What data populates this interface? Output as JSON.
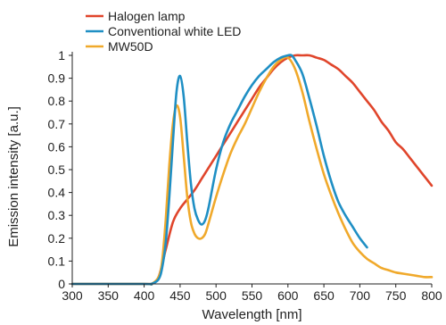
{
  "chart_data": {
    "type": "line",
    "xlabel": "Wavelength [nm]",
    "ylabel": "Emission intensity [a.u.]",
    "xlim": [
      300,
      800
    ],
    "ylim": [
      0,
      1
    ],
    "xticks": [
      300,
      350,
      400,
      450,
      500,
      550,
      600,
      650,
      700,
      750,
      800
    ],
    "yticks": [
      0,
      0.1,
      0.2,
      0.3,
      0.4,
      0.5,
      0.6,
      0.7,
      0.8,
      0.9,
      1
    ],
    "ytick_labels": [
      "0",
      "0.1",
      "0.2",
      "0.3",
      "0.4",
      "0.5",
      "0.6",
      "0.7",
      "0.8",
      "0.9",
      "1"
    ],
    "grid": false,
    "legend_position": "top-left",
    "series": [
      {
        "name": "Halogen lamp",
        "color": "#e0452b",
        "x": [
          300,
          400,
          410,
          420,
          430,
          440,
          450,
          460,
          470,
          480,
          490,
          500,
          510,
          520,
          530,
          540,
          550,
          560,
          570,
          580,
          590,
          600,
          610,
          620,
          630,
          640,
          650,
          660,
          670,
          680,
          690,
          700,
          710,
          720,
          730,
          740,
          750,
          760,
          770,
          780,
          790,
          800
        ],
        "y": [
          0,
          0,
          0.0,
          0.03,
          0.15,
          0.27,
          0.33,
          0.37,
          0.41,
          0.46,
          0.51,
          0.56,
          0.61,
          0.66,
          0.71,
          0.76,
          0.81,
          0.86,
          0.9,
          0.94,
          0.97,
          0.99,
          1.0,
          1.0,
          1.0,
          0.99,
          0.98,
          0.96,
          0.94,
          0.91,
          0.88,
          0.84,
          0.8,
          0.76,
          0.71,
          0.67,
          0.62,
          0.59,
          0.55,
          0.51,
          0.47,
          0.43
        ]
      },
      {
        "name": "Conventional white LED",
        "color": "#1f8fc4",
        "x": [
          300,
          400,
          410,
          420,
          425,
          430,
          435,
          440,
          445,
          450,
          455,
          460,
          465,
          470,
          475,
          480,
          485,
          490,
          500,
          510,
          520,
          530,
          540,
          550,
          560,
          570,
          580,
          590,
          600,
          605,
          610,
          620,
          630,
          640,
          650,
          660,
          670,
          680,
          690,
          700,
          710
        ],
        "y": [
          0,
          0,
          0.0,
          0.02,
          0.07,
          0.18,
          0.38,
          0.62,
          0.84,
          0.91,
          0.82,
          0.62,
          0.44,
          0.33,
          0.28,
          0.26,
          0.28,
          0.34,
          0.5,
          0.62,
          0.7,
          0.76,
          0.82,
          0.87,
          0.91,
          0.94,
          0.97,
          0.99,
          1.0,
          1.0,
          0.98,
          0.92,
          0.81,
          0.69,
          0.56,
          0.45,
          0.36,
          0.3,
          0.25,
          0.2,
          0.16
        ]
      },
      {
        "name": "MW50D",
        "color": "#f0a92b",
        "x": [
          300,
          400,
          410,
          420,
          425,
          430,
          435,
          440,
          445,
          450,
          455,
          460,
          465,
          470,
          475,
          480,
          485,
          490,
          500,
          510,
          520,
          530,
          540,
          550,
          560,
          570,
          580,
          590,
          600,
          610,
          620,
          630,
          640,
          650,
          660,
          670,
          680,
          690,
          700,
          710,
          720,
          730,
          740,
          750,
          760,
          770,
          780,
          790,
          800
        ],
        "y": [
          0,
          0,
          0.0,
          0.03,
          0.1,
          0.28,
          0.52,
          0.7,
          0.78,
          0.73,
          0.56,
          0.38,
          0.27,
          0.22,
          0.2,
          0.2,
          0.22,
          0.27,
          0.38,
          0.48,
          0.57,
          0.64,
          0.7,
          0.77,
          0.84,
          0.9,
          0.95,
          0.98,
          0.99,
          0.94,
          0.84,
          0.71,
          0.59,
          0.48,
          0.39,
          0.31,
          0.24,
          0.18,
          0.14,
          0.11,
          0.09,
          0.07,
          0.06,
          0.05,
          0.045,
          0.04,
          0.035,
          0.03,
          0.03
        ]
      }
    ]
  }
}
